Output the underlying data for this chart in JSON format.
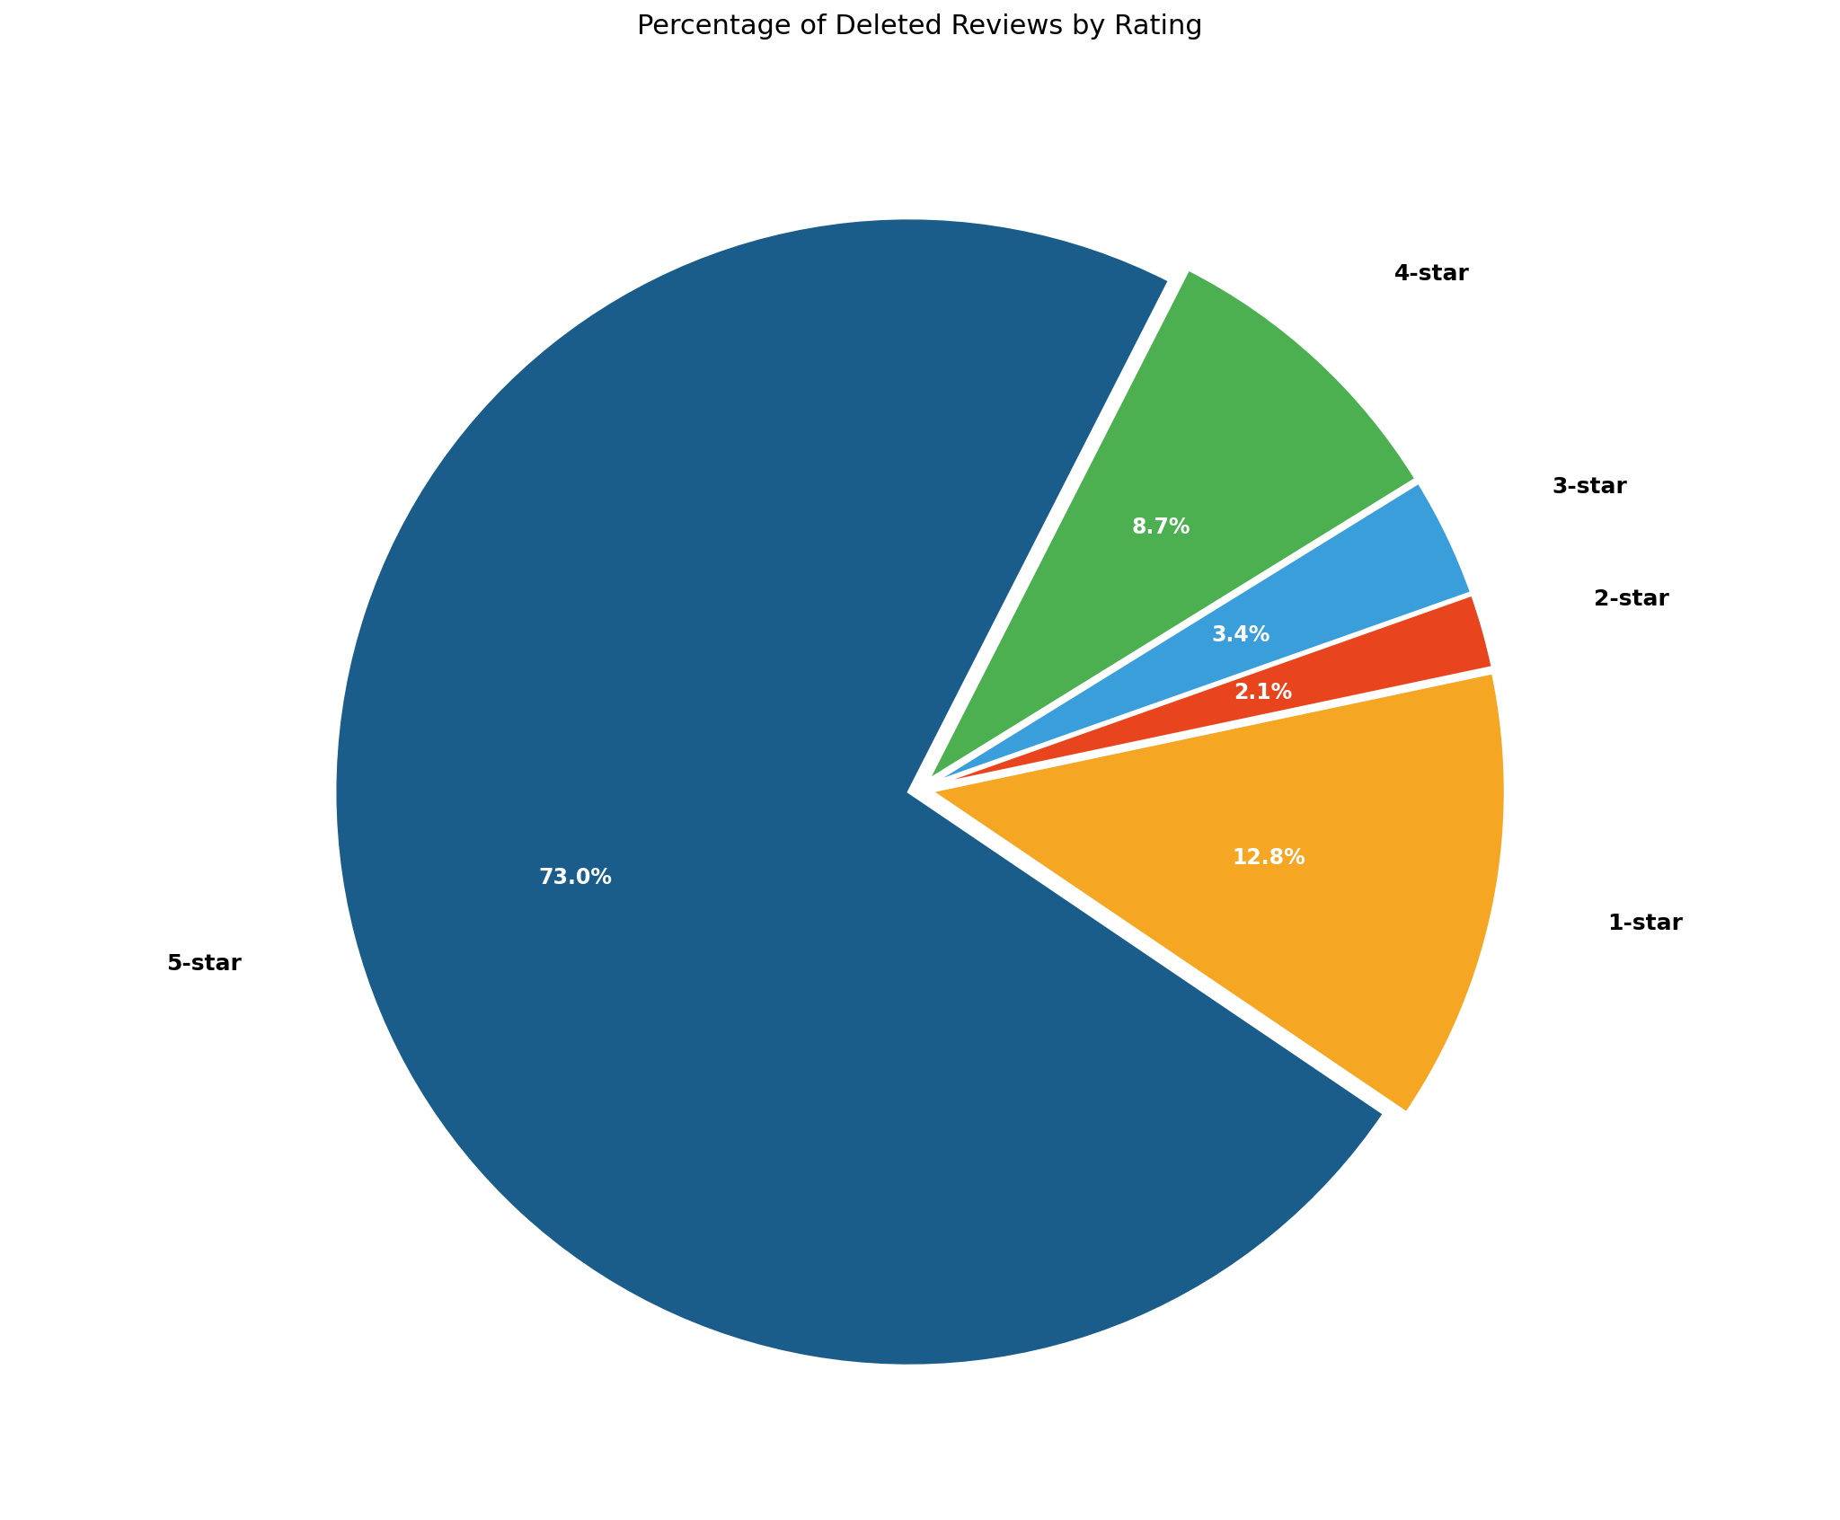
{
  "title": "Percentage of Deleted Reviews by Rating",
  "labels": [
    "5-star",
    "1-star",
    "2-star",
    "3-star",
    "4-star"
  ],
  "values": [
    73.1,
    12.8,
    2.1,
    3.4,
    8.7
  ],
  "colors": [
    "#1a5c8a",
    "#f5a623",
    "#e8451e",
    "#3a9edb",
    "#4caf50"
  ],
  "explode": [
    0.02,
    0.02,
    0.02,
    0.02,
    0.02
  ],
  "title_fontsize": 22,
  "background_color": "#ffffff",
  "text_color_inside": "#ffffff",
  "label_fontsize": 18,
  "pct_fontsize": 17,
  "startangle": 63
}
